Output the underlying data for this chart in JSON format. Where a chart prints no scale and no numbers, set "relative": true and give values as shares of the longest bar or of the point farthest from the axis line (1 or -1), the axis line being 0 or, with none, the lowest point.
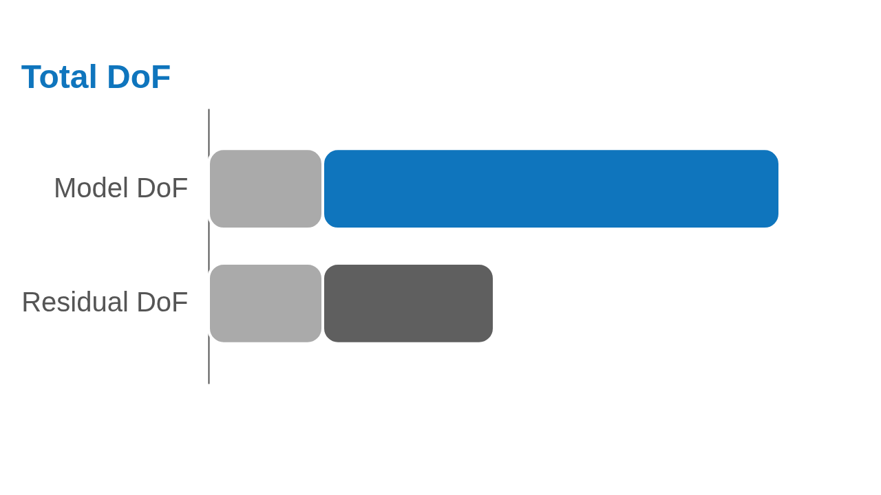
{
  "chart_data": {
    "type": "bar",
    "title": "Total DoF",
    "orientation": "horizontal",
    "stacked": true,
    "relative": true,
    "categories": [
      "Model DoF",
      "Residual DoF"
    ],
    "series": [
      {
        "color": "#aaaaaa",
        "values": [
          0.2,
          0.2
        ]
      },
      {
        "colors": [
          "#0f75bd",
          "#5f5f5f"
        ],
        "values": [
          0.8,
          0.3
        ]
      }
    ]
  }
}
